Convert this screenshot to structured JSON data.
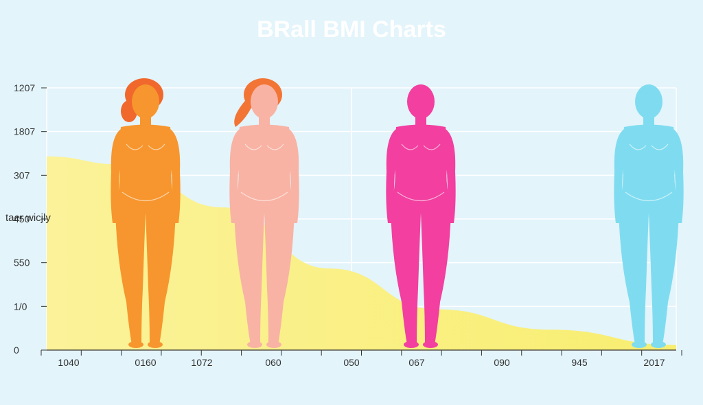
{
  "chart_data": {
    "type": "area",
    "title": "BRall BMI Charts",
    "ylabel": "taer wicjly",
    "y_tick_labels": [
      "1207",
      "1807",
      "307",
      "450",
      "550",
      "1/0",
      "0"
    ],
    "x_tick_labels": [
      "1040",
      "0160",
      "1072",
      "060",
      "050",
      "067",
      "090",
      "945",
      "2017"
    ],
    "grid": true,
    "area_curve": {
      "description_points": [
        {
          "x_frac": 0.0,
          "y_frac": 0.05
        },
        {
          "x_frac": 0.12,
          "y_frac": 0.09
        },
        {
          "x_frac": 0.28,
          "y_frac": 0.3
        },
        {
          "x_frac": 0.45,
          "y_frac": 0.6
        },
        {
          "x_frac": 0.62,
          "y_frac": 0.8
        },
        {
          "x_frac": 0.8,
          "y_frac": 0.9
        },
        {
          "x_frac": 1.0,
          "y_frac": 0.975
        }
      ]
    },
    "figures": [
      {
        "name": "figure-orange",
        "color": "#f7962e",
        "hair": "#f0682b"
      },
      {
        "name": "figure-peach",
        "color": "#f8b3a4",
        "hair": "#f27535"
      },
      {
        "name": "figure-magenta",
        "color": "#f23fa0",
        "hair": "#f23fa0"
      },
      {
        "name": "figure-cyan",
        "color": "#7fdcf0",
        "hair": "#7fdcf0"
      }
    ],
    "colors": {
      "background": "#e3f4fb",
      "area": "#faf18a",
      "grid": "#ffffff",
      "axis": "#333333",
      "title": "#ffffff"
    }
  }
}
